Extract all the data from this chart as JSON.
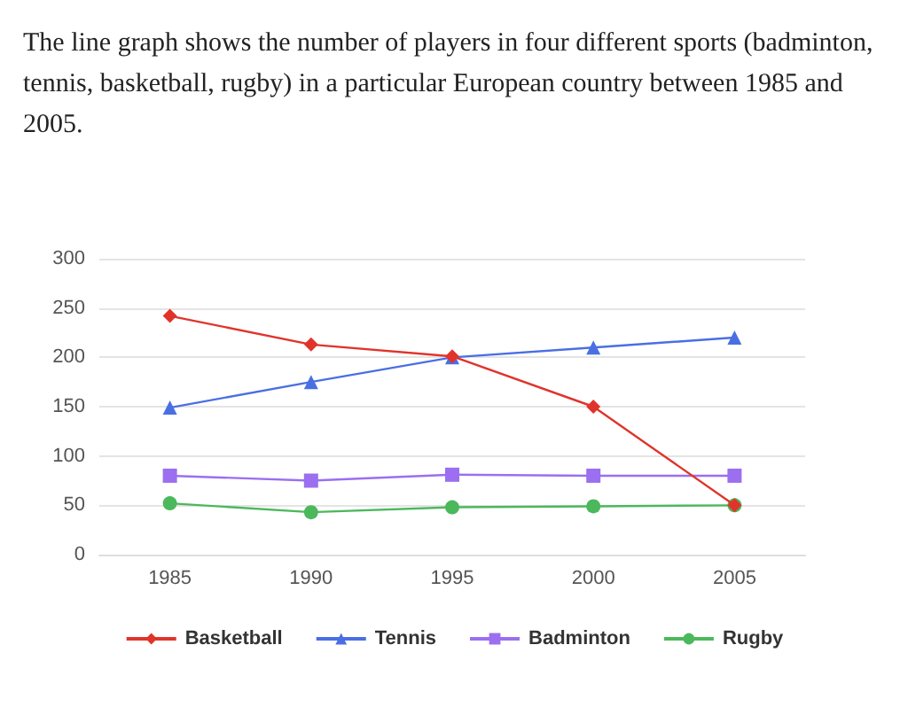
{
  "chart_data": {
    "type": "line",
    "title": "The line graph shows the number of players in four different sports (badminton, tennis, basketball, rugby) in a particular European country between 1985 and 2005.",
    "categories": [
      "1985",
      "1990",
      "1995",
      "2000",
      "2005"
    ],
    "series": [
      {
        "name": "Basketball",
        "color": "#e0342b",
        "marker": "diamond",
        "values": [
          242,
          213,
          201,
          150,
          50
        ]
      },
      {
        "name": "Tennis",
        "color": "#4a6fe3",
        "marker": "triangle",
        "values": [
          149,
          175,
          200,
          210,
          220
        ]
      },
      {
        "name": "Badminton",
        "color": "#9b6ff0",
        "marker": "square",
        "values": [
          80,
          75,
          81,
          80,
          80
        ]
      },
      {
        "name": "Rugby",
        "color": "#4cb85c",
        "marker": "circle",
        "values": [
          52,
          43,
          48,
          49,
          50
        ]
      }
    ],
    "ylim": [
      0,
      300
    ],
    "yticks": [
      0,
      50,
      100,
      150,
      200,
      250,
      300
    ],
    "grid": "y",
    "legend": "bottom",
    "line_style": "solid"
  }
}
